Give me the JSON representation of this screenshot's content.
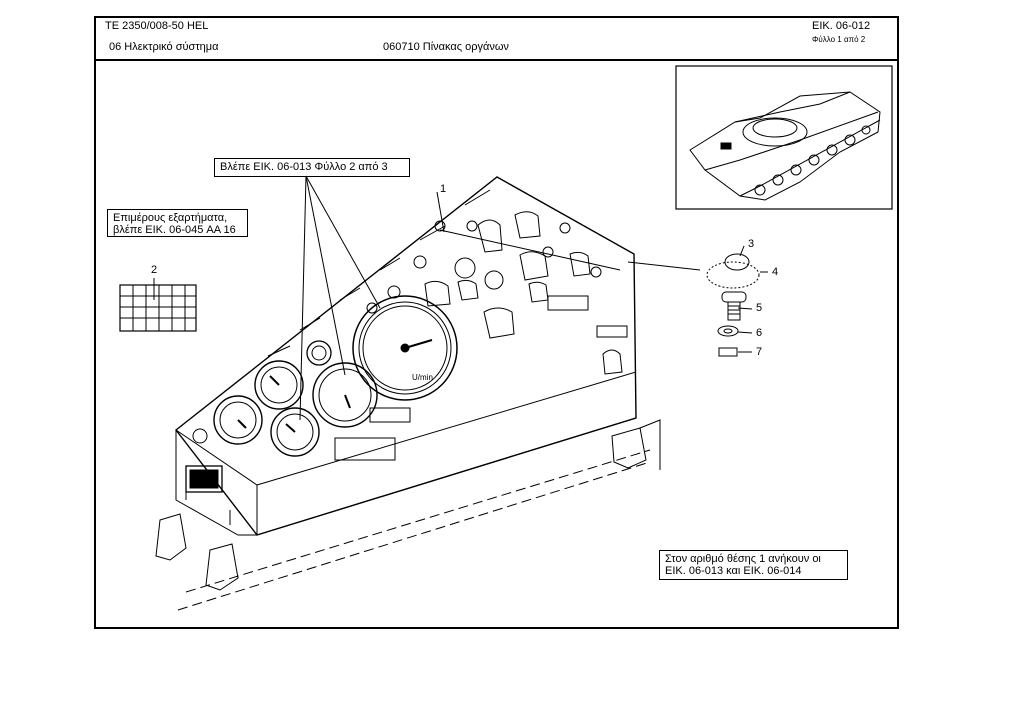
{
  "header": {
    "doc_code": "TE  2350/008-50 HEL",
    "section": "06 Ηλεκτρικό σύστημα",
    "assembly": "060710 Πίνακας οργάνων",
    "figure_ref": "ΕΙΚ. 06-012",
    "sheet": "Φύλλο 1 από 2"
  },
  "notes": {
    "see_figure": "Βλέπε ΕΙΚ. 06-013 Φύλλο 2 από 3",
    "subparts_line1": "Επιμέρους εξαρτήματα,",
    "subparts_line2": "βλέπε ΕΙΚ. 06-045 AA 16",
    "position_line1": "Στον αριθμό θέσης 1 ανήκουν οι",
    "position_line2": "ΕΙΚ. 06-013 και ΕΙΚ. 06-014"
  },
  "callouts": [
    "1",
    "2",
    "3",
    "4",
    "5",
    "6",
    "7"
  ],
  "gauge_labels": {
    "tacho_unit": "U/min"
  }
}
